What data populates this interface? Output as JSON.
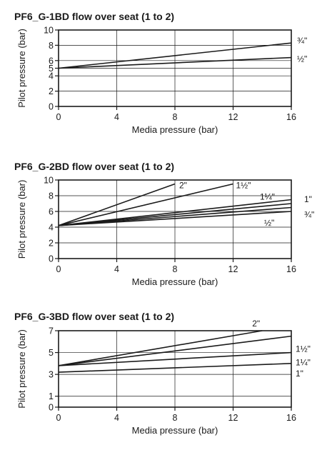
{
  "chart_data": [
    {
      "type": "line",
      "title": "PF6_G-1BD flow over seat (1 to 2)",
      "xlabel": "Media pressure (bar)",
      "ylabel": "Pilot pressure (bar)",
      "xlim": [
        0,
        16
      ],
      "ylim": [
        0,
        10
      ],
      "xticks": [
        0,
        4,
        8,
        12,
        16
      ],
      "yticks": [
        0,
        2,
        4,
        5,
        6,
        8,
        10
      ],
      "grid": true,
      "series": [
        {
          "name": "¾\"",
          "x": [
            0,
            16
          ],
          "y": [
            5,
            8.3
          ]
        },
        {
          "name": "½\"",
          "x": [
            0,
            16
          ],
          "y": [
            5,
            6.4
          ]
        }
      ]
    },
    {
      "type": "line",
      "title": "PF6_G-2BD flow over seat (1 to 2)",
      "xlabel": "Media pressure (bar)",
      "ylabel": "Pilot pressure (bar)",
      "xlim": [
        0,
        16
      ],
      "ylim": [
        0,
        10
      ],
      "xticks": [
        0,
        4,
        8,
        12,
        16
      ],
      "yticks": [
        0,
        2,
        4,
        6,
        8,
        10
      ],
      "grid": true,
      "series": [
        {
          "name": "2\"",
          "x": [
            0,
            8
          ],
          "y": [
            4.2,
            9.5
          ]
        },
        {
          "name": "1½\"",
          "x": [
            0,
            12
          ],
          "y": [
            4.2,
            9.5
          ]
        },
        {
          "name": "1¼\"",
          "x": [
            0,
            16
          ],
          "y": [
            4.2,
            7.5
          ]
        },
        {
          "name": "1\"",
          "x": [
            0,
            16
          ],
          "y": [
            4.2,
            7.0
          ]
        },
        {
          "name": "¾\"",
          "x": [
            0,
            16
          ],
          "y": [
            4.2,
            6.5
          ]
        },
        {
          "name": "½\"",
          "x": [
            0,
            16
          ],
          "y": [
            4.2,
            6.0
          ]
        }
      ]
    },
    {
      "type": "line",
      "title": "PF6_G-3BD flow over seat (1 to 2)",
      "xlabel": "Media pressure (bar)",
      "ylabel": "Pilot pressure (bar)",
      "xlim": [
        0,
        16
      ],
      "ylim": [
        0,
        7
      ],
      "xticks": [
        0,
        4,
        8,
        12,
        16
      ],
      "yticks": [
        0,
        1,
        3,
        5,
        7
      ],
      "grid": true,
      "series": [
        {
          "name": "2\"",
          "x": [
            0,
            14
          ],
          "y": [
            3.8,
            7.0
          ]
        },
        {
          "name": "1½\"",
          "x": [
            0,
            16
          ],
          "y": [
            3.8,
            6.5
          ]
        },
        {
          "name": "1¼\"",
          "x": [
            0,
            16
          ],
          "y": [
            3.8,
            5.0
          ]
        },
        {
          "name": "1\"",
          "x": [
            0,
            16
          ],
          "y": [
            3.2,
            4.0
          ]
        }
      ]
    }
  ]
}
